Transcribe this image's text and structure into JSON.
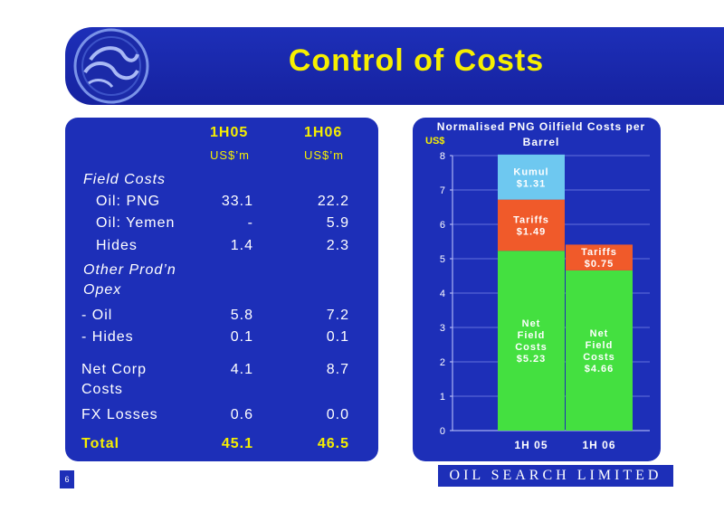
{
  "slide": {
    "title": "Control of Costs",
    "page_number": "6",
    "company": "OIL SEARCH LIMITED"
  },
  "table": {
    "columns": [
      "1H05",
      "1H06"
    ],
    "unit": "US$’m",
    "sections": [
      {
        "label": "Field Costs",
        "v1": "",
        "v2": ""
      },
      {
        "label": "Oil: PNG",
        "v1": "33.1",
        "v2": "22.2"
      },
      {
        "label": "Oil: Yemen",
        "v1": "-",
        "v2": "5.9"
      },
      {
        "label": "Hides",
        "v1": "1.4",
        "v2": "2.3"
      },
      {
        "label": "Other Prod’n",
        "v1": "",
        "v2": ""
      },
      {
        "label": "Opex",
        "v1": "",
        "v2": ""
      },
      {
        "label": "- Oil",
        "v1": "5.8",
        "v2": "7.2"
      },
      {
        "label": "- Hides",
        "v1": "0.1",
        "v2": "0.1"
      },
      {
        "label": "Net Corp",
        "v1": "4.1",
        "v2": "8.7"
      },
      {
        "label": "Costs",
        "v1": "",
        "v2": ""
      },
      {
        "label": "FX Losses",
        "v1": "0.6",
        "v2": "0.0"
      },
      {
        "label": "Total",
        "v1": "45.1",
        "v2": "46.5"
      }
    ]
  },
  "chart_data": {
    "type": "bar",
    "title": "Normalised PNG Oilfield Costs per Barrel",
    "ylabel": "US$",
    "ylim": [
      0,
      8
    ],
    "yticks": [
      0,
      1,
      2,
      3,
      4,
      5,
      6,
      7,
      8
    ],
    "categories": [
      "1H 05",
      "1H 06"
    ],
    "stacked": true,
    "series": [
      {
        "name": "Net Field Costs",
        "values": [
          5.23,
          4.66
        ],
        "labels": [
          "$5.23",
          "$4.66"
        ],
        "color": "#44e040"
      },
      {
        "name": "Tariffs",
        "values": [
          1.49,
          0.75
        ],
        "labels": [
          "$1.49",
          "$0.75"
        ],
        "color": "#f05a2a"
      },
      {
        "name": "Kumul",
        "values": [
          1.31,
          0
        ],
        "labels": [
          "$1.31",
          ""
        ],
        "color": "#6ec8f0"
      }
    ]
  }
}
